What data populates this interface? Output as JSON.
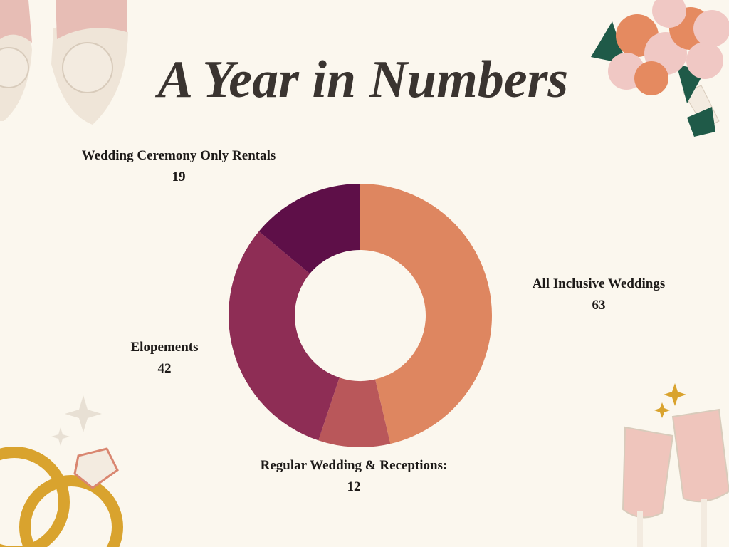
{
  "chart_data": {
    "type": "donut",
    "title": "A Year in Numbers",
    "categories": [
      "All Inclusive Weddings",
      "Regular Wedding & Receptions:",
      "Elopements",
      "Wedding Ceremony Only Rentals"
    ],
    "values": [
      63,
      12,
      42,
      19
    ],
    "colors": [
      "#de8660",
      "#b9575a",
      "#8e2d55",
      "#5e0f48"
    ]
  }
}
